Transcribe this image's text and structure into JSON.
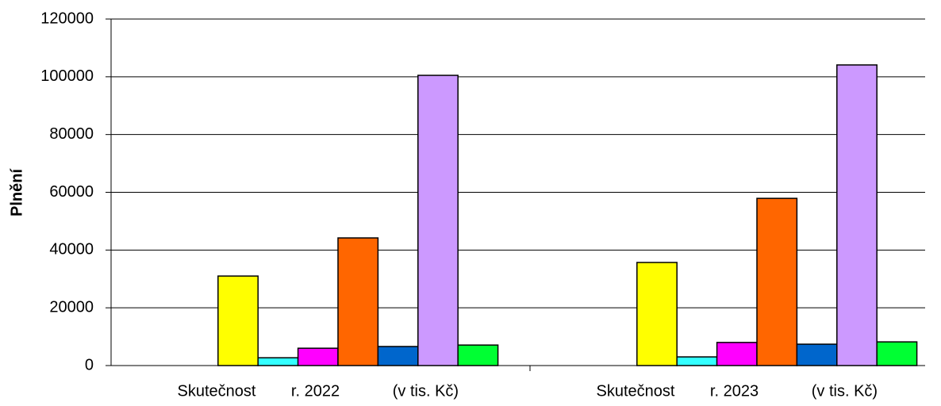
{
  "chart_data": {
    "type": "bar",
    "y_label": "Plnění",
    "categories": [
      "Skutečnost        r. 2022            (v tis. Kč)",
      "Skutečnost        r. 2023            (v tis. Kč)"
    ],
    "series": [
      {
        "values": [
          null,
          null
        ]
      },
      {
        "values": [
          null,
          null
        ]
      },
      {
        "color": "#ffff00",
        "values": [
          31000,
          35700
        ]
      },
      {
        "color": "#33ffff",
        "values": [
          2700,
          3000
        ]
      },
      {
        "color": "#ff00ff",
        "values": [
          6000,
          8000
        ]
      },
      {
        "color": "#ff6600",
        "values": [
          44200,
          57900
        ]
      },
      {
        "color": "#0066cc",
        "values": [
          6600,
          7400
        ]
      },
      {
        "color": "#cc99ff",
        "values": [
          100500,
          104100
        ]
      },
      {
        "color": "#00ff33",
        "values": [
          7100,
          8200
        ]
      }
    ],
    "ylim": [
      0,
      120000
    ],
    "yticks": [
      0,
      20000,
      40000,
      60000,
      80000,
      100000,
      120000
    ],
    "grid": true
  }
}
